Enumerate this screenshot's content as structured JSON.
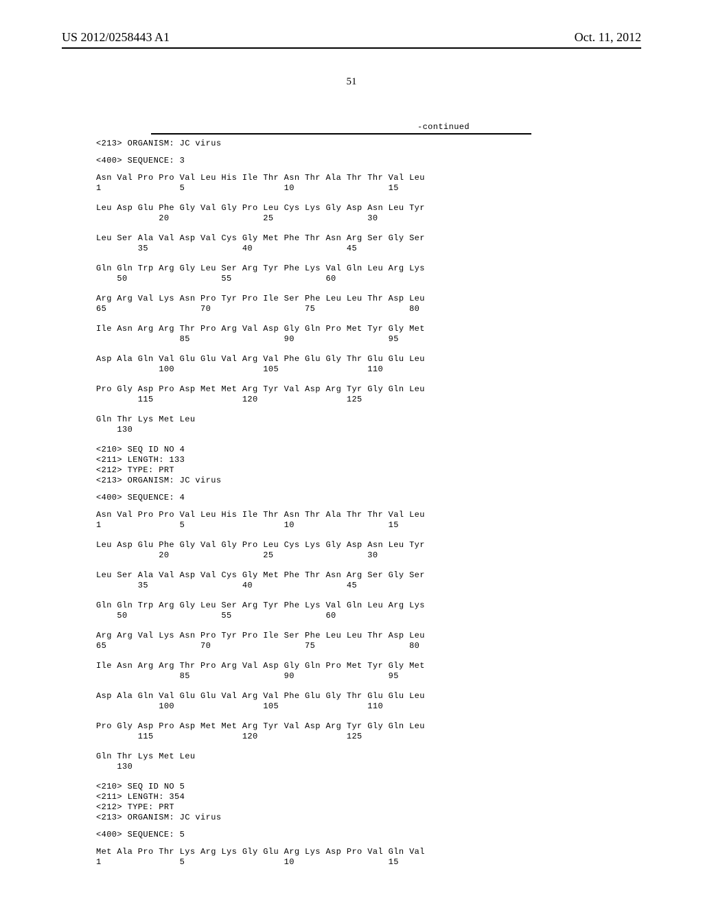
{
  "header": {
    "publication_number": "US 2012/0258443 A1",
    "publication_date": "Oct. 11, 2012"
  },
  "page_number": "51",
  "continued_label": "-continued",
  "blocks": [
    {
      "type": "header_lines",
      "lines": [
        "<213> ORGANISM: JC virus"
      ]
    },
    {
      "type": "note",
      "lines": [
        "<400> SEQUENCE: 3"
      ]
    },
    {
      "type": "seq_row",
      "aa": "Asn Val Pro Pro Val Leu His Ile Thr Asn Thr Ala Thr Thr Val Leu",
      "num": "1               5                   10                  15"
    },
    {
      "type": "seq_row",
      "aa": "Leu Asp Glu Phe Gly Val Gly Pro Leu Cys Lys Gly Asp Asn Leu Tyr",
      "num": "            20                  25                  30"
    },
    {
      "type": "seq_row",
      "aa": "Leu Ser Ala Val Asp Val Cys Gly Met Phe Thr Asn Arg Ser Gly Ser",
      "num": "        35                  40                  45"
    },
    {
      "type": "seq_row",
      "aa": "Gln Gln Trp Arg Gly Leu Ser Arg Tyr Phe Lys Val Gln Leu Arg Lys",
      "num": "    50                  55                  60"
    },
    {
      "type": "seq_row",
      "aa": "Arg Arg Val Lys Asn Pro Tyr Pro Ile Ser Phe Leu Leu Thr Asp Leu",
      "num": "65                  70                  75                  80"
    },
    {
      "type": "seq_row",
      "aa": "Ile Asn Arg Arg Thr Pro Arg Val Asp Gly Gln Pro Met Tyr Gly Met",
      "num": "                85                  90                  95"
    },
    {
      "type": "seq_row",
      "aa": "Asp Ala Gln Val Glu Glu Val Arg Val Phe Glu Gly Thr Glu Glu Leu",
      "num": "            100                 105                 110"
    },
    {
      "type": "seq_row",
      "aa": "Pro Gly Asp Pro Asp Met Met Arg Tyr Val Asp Arg Tyr Gly Gln Leu",
      "num": "        115                 120                 125"
    },
    {
      "type": "seq_row",
      "aa": "Gln Thr Lys Met Leu",
      "num": "    130"
    },
    {
      "type": "header_lines",
      "lines": [
        "<210> SEQ ID NO 4",
        "<211> LENGTH: 133",
        "<212> TYPE: PRT",
        "<213> ORGANISM: JC virus"
      ]
    },
    {
      "type": "note",
      "lines": [
        "<400> SEQUENCE: 4"
      ]
    },
    {
      "type": "seq_row",
      "aa": "Asn Val Pro Pro Val Leu His Ile Thr Asn Thr Ala Thr Thr Val Leu",
      "num": "1               5                   10                  15"
    },
    {
      "type": "seq_row",
      "aa": "Leu Asp Glu Phe Gly Val Gly Pro Leu Cys Lys Gly Asp Asn Leu Tyr",
      "num": "            20                  25                  30"
    },
    {
      "type": "seq_row",
      "aa": "Leu Ser Ala Val Asp Val Cys Gly Met Phe Thr Asn Arg Ser Gly Ser",
      "num": "        35                  40                  45"
    },
    {
      "type": "seq_row",
      "aa": "Gln Gln Trp Arg Gly Leu Ser Arg Tyr Phe Lys Val Gln Leu Arg Lys",
      "num": "    50                  55                  60"
    },
    {
      "type": "seq_row",
      "aa": "Arg Arg Val Lys Asn Pro Tyr Pro Ile Ser Phe Leu Leu Thr Asp Leu",
      "num": "65                  70                  75                  80"
    },
    {
      "type": "seq_row",
      "aa": "Ile Asn Arg Arg Thr Pro Arg Val Asp Gly Gln Pro Met Tyr Gly Met",
      "num": "                85                  90                  95"
    },
    {
      "type": "seq_row",
      "aa": "Asp Ala Gln Val Glu Glu Val Arg Val Phe Glu Gly Thr Glu Glu Leu",
      "num": "            100                 105                 110"
    },
    {
      "type": "seq_row",
      "aa": "Pro Gly Asp Pro Asp Met Met Arg Tyr Val Asp Arg Tyr Gly Gln Leu",
      "num": "        115                 120                 125"
    },
    {
      "type": "seq_row",
      "aa": "Gln Thr Lys Met Leu",
      "num": "    130"
    },
    {
      "type": "header_lines",
      "lines": [
        "<210> SEQ ID NO 5",
        "<211> LENGTH: 354",
        "<212> TYPE: PRT",
        "<213> ORGANISM: JC virus"
      ]
    },
    {
      "type": "note",
      "lines": [
        "<400> SEQUENCE: 5"
      ]
    },
    {
      "type": "seq_row",
      "aa": "Met Ala Pro Thr Lys Arg Lys Gly Glu Arg Lys Asp Pro Val Gln Val",
      "num": "1               5                   10                  15"
    }
  ]
}
